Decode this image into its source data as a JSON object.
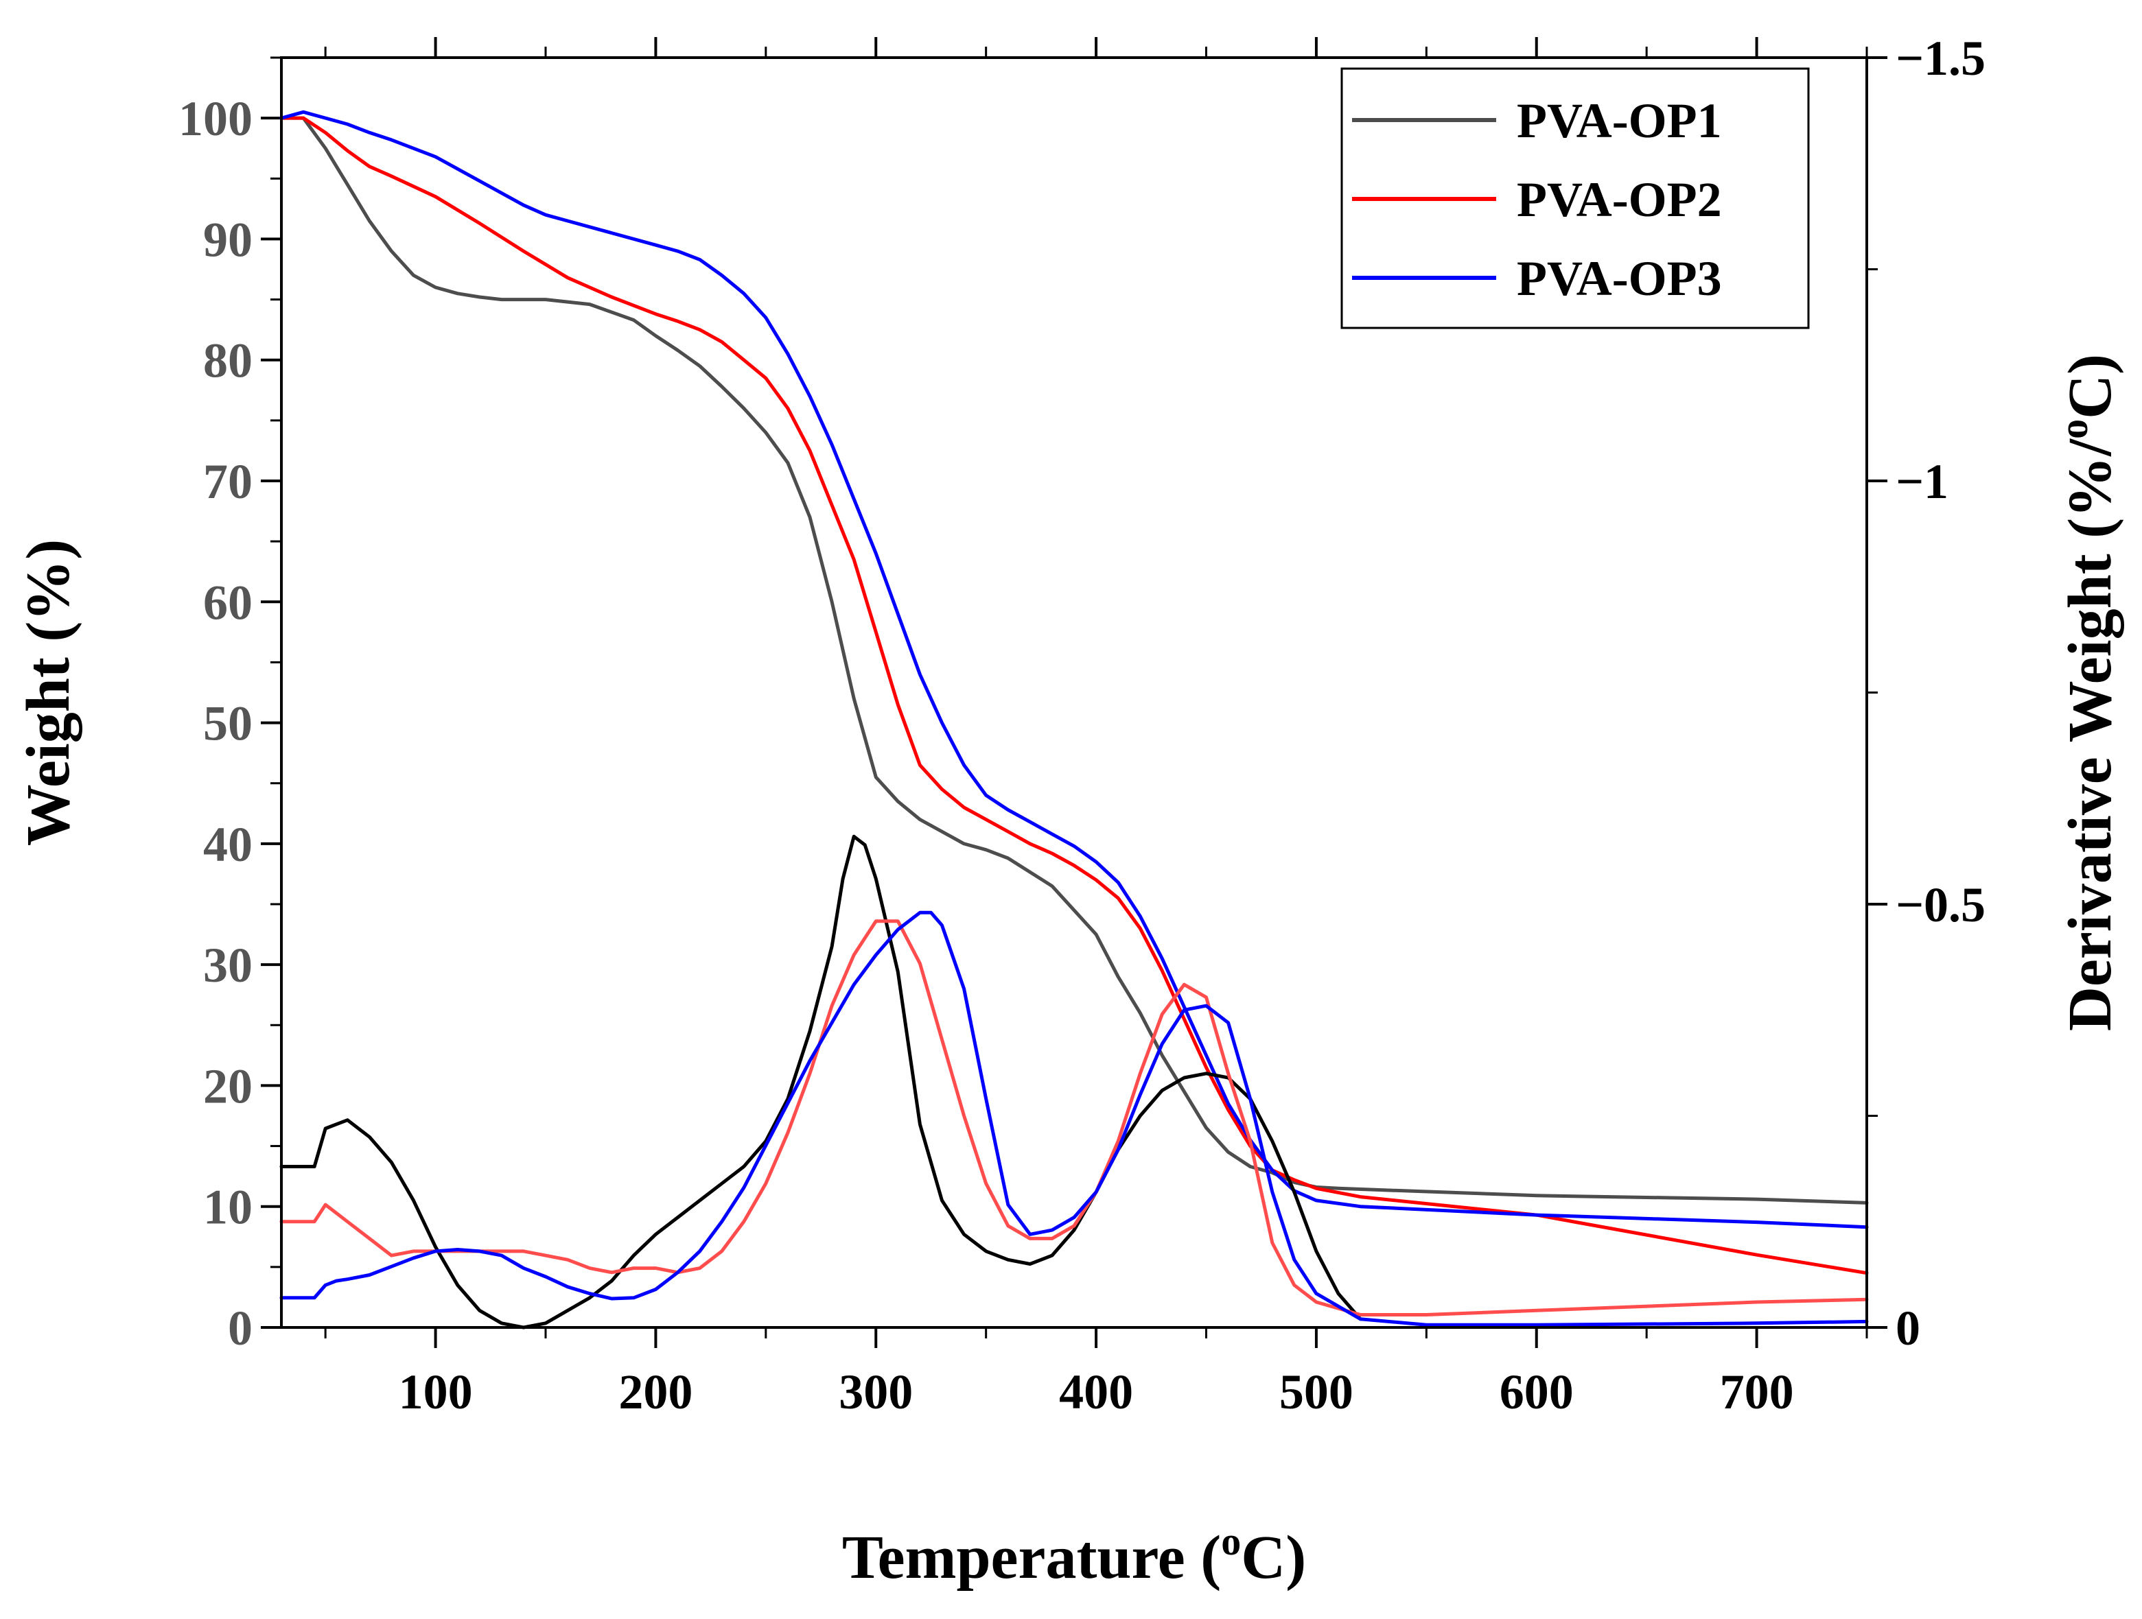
{
  "chart_data": {
    "type": "line",
    "title": "",
    "xlabel": "Temperature (",
    "xlabel_sup": "o",
    "xlabel_end": "C)",
    "ylabel": "Weight (%)",
    "ylabel_right": "Derivative Weight (%/",
    "ylabel_right_sup": "o",
    "ylabel_right_end": "C)",
    "xlim": [
      30,
      750
    ],
    "ylim": [
      0,
      105
    ],
    "ylim_right": [
      0,
      -1.5
    ],
    "x_ticks": [
      100,
      200,
      300,
      400,
      500,
      600,
      700
    ],
    "x_tick_labels": [
      "100",
      "200",
      "300",
      "400",
      "500",
      "600",
      "700"
    ],
    "y_ticks": [
      0,
      10,
      20,
      30,
      40,
      50,
      60,
      70,
      80,
      90,
      100
    ],
    "y_tick_labels": [
      "0",
      "10",
      "20",
      "30",
      "40",
      "50",
      "60",
      "70",
      "80",
      "90",
      "100"
    ],
    "y_right_ticks": [
      0,
      -0.5,
      -1,
      -1.5
    ],
    "y_right_tick_labels": [
      "0",
      "−0.5",
      "−1",
      "−1.5"
    ],
    "legend": {
      "position": "top-right",
      "entries": [
        {
          "label": "PVA-OP1",
          "color": "#4d4d4d"
        },
        {
          "label": "PVA-OP2",
          "color": "#ff0000"
        },
        {
          "label": "PVA-OP3",
          "color": "#0000ff"
        }
      ]
    },
    "series": [
      {
        "name": "PVA-OP1",
        "kind": "weight",
        "axis": "left",
        "color": "#4d4d4d",
        "x": [
          30,
          40,
          50,
          60,
          70,
          80,
          90,
          100,
          110,
          120,
          130,
          150,
          170,
          190,
          200,
          210,
          220,
          230,
          240,
          250,
          260,
          270,
          280,
          290,
          300,
          310,
          320,
          330,
          340,
          350,
          360,
          380,
          400,
          410,
          420,
          430,
          440,
          450,
          460,
          470,
          480,
          490,
          500,
          510,
          600,
          700,
          750
        ],
        "values": [
          100,
          100,
          97.5,
          94.5,
          91.5,
          89,
          87,
          86,
          85.5,
          85.2,
          85,
          85,
          84.6,
          83.3,
          82,
          80.8,
          79.5,
          77.8,
          76,
          74,
          71.5,
          67,
          60,
          52,
          45.5,
          43.5,
          42,
          41,
          40,
          39.5,
          38.8,
          36.5,
          32.5,
          29,
          26,
          22.5,
          19.5,
          16.5,
          14.5,
          13.3,
          12.8,
          12,
          11.6,
          11.5,
          10.9,
          10.6,
          10.3
        ]
      },
      {
        "name": "PVA-OP2",
        "kind": "weight",
        "axis": "left",
        "color": "#ff0000",
        "x": [
          30,
          40,
          50,
          60,
          70,
          80,
          100,
          120,
          140,
          160,
          180,
          200,
          210,
          220,
          230,
          240,
          250,
          260,
          270,
          280,
          290,
          300,
          310,
          320,
          330,
          340,
          350,
          360,
          370,
          380,
          390,
          400,
          410,
          420,
          430,
          440,
          450,
          460,
          470,
          480,
          490,
          500,
          520,
          600,
          700,
          750
        ],
        "values": [
          100,
          100,
          98.8,
          97.3,
          96,
          95.2,
          93.5,
          91.3,
          89,
          86.8,
          85.2,
          83.8,
          83.2,
          82.5,
          81.5,
          80,
          78.5,
          76,
          72.5,
          68,
          63.5,
          57.5,
          51.5,
          46.5,
          44.5,
          43,
          42,
          41,
          40,
          39.2,
          38.2,
          37,
          35.5,
          33,
          29.5,
          25.5,
          21.5,
          18,
          15,
          13,
          12.2,
          11.5,
          10.8,
          9.3,
          6,
          4.5
        ]
      },
      {
        "name": "PVA-OP3",
        "kind": "weight",
        "axis": "left",
        "color": "#0000ff",
        "x": [
          30,
          40,
          50,
          60,
          70,
          80,
          100,
          120,
          140,
          150,
          160,
          180,
          200,
          210,
          220,
          230,
          240,
          250,
          260,
          270,
          280,
          290,
          300,
          310,
          320,
          330,
          340,
          350,
          360,
          370,
          380,
          390,
          400,
          410,
          420,
          430,
          440,
          450,
          460,
          470,
          480,
          490,
          500,
          520,
          600,
          700,
          750
        ],
        "values": [
          100,
          100.5,
          100,
          99.5,
          98.8,
          98.2,
          96.8,
          94.8,
          92.8,
          92,
          91.5,
          90.5,
          89.5,
          89,
          88.3,
          87,
          85.5,
          83.5,
          80.5,
          77,
          73,
          68.5,
          64,
          59,
          54,
          50,
          46.5,
          44,
          42.8,
          41.8,
          40.8,
          39.8,
          38.5,
          36.8,
          34,
          30.5,
          26.5,
          22.5,
          18.5,
          15.5,
          13,
          11.3,
          10.5,
          10,
          9.3,
          8.7,
          8.3
        ]
      },
      {
        "name": "PVA-OP1 derivative",
        "kind": "derivative",
        "axis": "right",
        "color": "#000000",
        "x": [
          30,
          40,
          45,
          50,
          55,
          60,
          70,
          80,
          90,
          100,
          110,
          120,
          130,
          140,
          150,
          160,
          170,
          180,
          190,
          200,
          210,
          220,
          230,
          240,
          250,
          260,
          270,
          280,
          285,
          290,
          295,
          300,
          310,
          320,
          330,
          340,
          350,
          360,
          370,
          380,
          390,
          400,
          410,
          420,
          430,
          440,
          450,
          460,
          470,
          480,
          490,
          500,
          510,
          520
        ],
        "values": [
          -0.19,
          -0.19,
          -0.19,
          -0.235,
          -0.24,
          -0.245,
          -0.225,
          -0.195,
          -0.15,
          -0.095,
          -0.05,
          -0.02,
          -0.005,
          0,
          -0.005,
          -0.02,
          -0.035,
          -0.055,
          -0.085,
          -0.11,
          -0.13,
          -0.15,
          -0.17,
          -0.19,
          -0.22,
          -0.27,
          -0.35,
          -0.45,
          -0.53,
          -0.58,
          -0.57,
          -0.53,
          -0.42,
          -0.24,
          -0.15,
          -0.11,
          -0.09,
          -0.08,
          -0.075,
          -0.085,
          -0.115,
          -0.16,
          -0.21,
          -0.25,
          -0.28,
          -0.295,
          -0.3,
          -0.295,
          -0.27,
          -0.22,
          -0.16,
          -0.09,
          -0.04,
          -0.01
        ]
      },
      {
        "name": "PVA-OP2 derivative",
        "kind": "derivative",
        "axis": "right",
        "color": "#ff4d4d",
        "x": [
          30,
          40,
          45,
          50,
          55,
          60,
          70,
          80,
          90,
          100,
          110,
          120,
          130,
          140,
          150,
          160,
          170,
          180,
          190,
          200,
          210,
          220,
          230,
          240,
          250,
          260,
          270,
          280,
          290,
          300,
          310,
          320,
          330,
          340,
          350,
          360,
          370,
          380,
          390,
          400,
          410,
          420,
          430,
          440,
          450,
          460,
          470,
          480,
          490,
          500,
          520,
          550,
          600,
          700,
          750
        ],
        "values": [
          -0.125,
          -0.125,
          -0.125,
          -0.145,
          -0.135,
          -0.125,
          -0.105,
          -0.085,
          -0.09,
          -0.09,
          -0.09,
          -0.09,
          -0.09,
          -0.09,
          -0.085,
          -0.08,
          -0.07,
          -0.065,
          -0.07,
          -0.07,
          -0.065,
          -0.07,
          -0.09,
          -0.125,
          -0.17,
          -0.23,
          -0.3,
          -0.38,
          -0.44,
          -0.48,
          -0.48,
          -0.43,
          -0.34,
          -0.25,
          -0.17,
          -0.12,
          -0.105,
          -0.105,
          -0.12,
          -0.16,
          -0.22,
          -0.3,
          -0.37,
          -0.405,
          -0.39,
          -0.3,
          -0.22,
          -0.1,
          -0.05,
          -0.03,
          -0.015,
          -0.015,
          -0.02,
          -0.03,
          -0.033
        ]
      },
      {
        "name": "PVA-OP3 derivative",
        "kind": "derivative",
        "axis": "right",
        "color": "#0000ff",
        "x": [
          30,
          40,
          45,
          50,
          55,
          60,
          70,
          80,
          90,
          100,
          110,
          120,
          130,
          140,
          150,
          160,
          170,
          180,
          190,
          200,
          210,
          220,
          230,
          240,
          250,
          260,
          270,
          280,
          290,
          300,
          310,
          320,
          325,
          330,
          340,
          350,
          360,
          370,
          380,
          390,
          400,
          410,
          420,
          430,
          440,
          450,
          460,
          470,
          480,
          490,
          500,
          520,
          550,
          600,
          700,
          750
        ],
        "values": [
          -0.035,
          -0.035,
          -0.035,
          -0.05,
          -0.055,
          -0.057,
          -0.062,
          -0.072,
          -0.082,
          -0.09,
          -0.092,
          -0.09,
          -0.085,
          -0.07,
          -0.06,
          -0.048,
          -0.04,
          -0.034,
          -0.035,
          -0.045,
          -0.065,
          -0.09,
          -0.125,
          -0.165,
          -0.215,
          -0.265,
          -0.315,
          -0.36,
          -0.405,
          -0.44,
          -0.47,
          -0.49,
          -0.49,
          -0.475,
          -0.4,
          -0.27,
          -0.145,
          -0.11,
          -0.115,
          -0.13,
          -0.16,
          -0.21,
          -0.275,
          -0.335,
          -0.375,
          -0.38,
          -0.36,
          -0.27,
          -0.16,
          -0.08,
          -0.04,
          -0.01,
          -0.003,
          -0.003,
          -0.005,
          -0.007
        ]
      }
    ]
  }
}
